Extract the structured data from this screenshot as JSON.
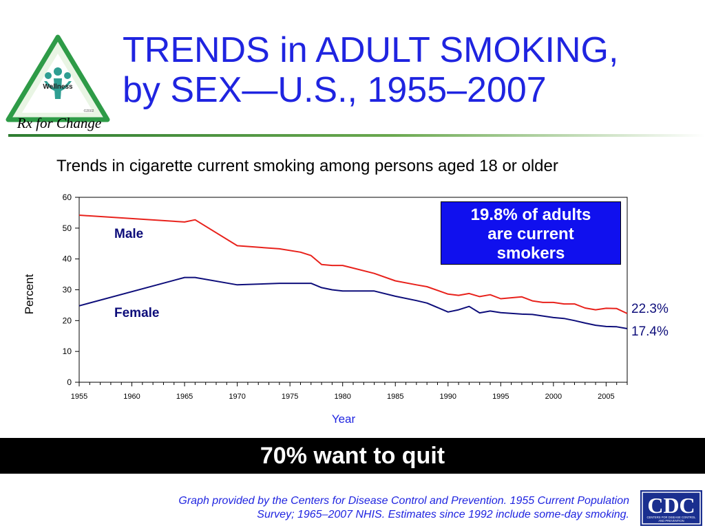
{
  "logo": {
    "wellness": "Wellness",
    "copyright": "©2002",
    "rx_for_change": "Rx for Change"
  },
  "title": {
    "line1": "TRENDS in ADULT SMOKING,",
    "line2": "by SEX—U.S., 1955–2007"
  },
  "chart_data": {
    "type": "line",
    "title": "Trends in cigarette current smoking among persons aged 18 or older",
    "xlabel": "Year",
    "ylabel": "Percent",
    "xlim": [
      1955,
      2007
    ],
    "ylim": [
      0,
      60
    ],
    "x_ticks": [
      1955,
      1960,
      1965,
      1970,
      1975,
      1980,
      1985,
      1990,
      1995,
      2000,
      2005
    ],
    "y_ticks": [
      0,
      10,
      20,
      30,
      40,
      50,
      60
    ],
    "grid": false,
    "legend": "inline labels",
    "series": [
      {
        "name": "Male",
        "color": "#e8211b",
        "x": [
          1955,
          1965,
          1966,
          1970,
          1974,
          1976,
          1977,
          1978,
          1979,
          1980,
          1983,
          1985,
          1987,
          1988,
          1990,
          1991,
          1992,
          1993,
          1994,
          1995,
          1997,
          1998,
          1999,
          2000,
          2001,
          2002,
          2003,
          2004,
          2005,
          2006,
          2007
        ],
        "values": [
          54.2,
          52.0,
          52.7,
          44.3,
          43.3,
          42.2,
          41.1,
          38.2,
          37.9,
          37.9,
          35.3,
          32.9,
          31.6,
          31.0,
          28.6,
          28.2,
          28.8,
          27.8,
          28.4,
          27.1,
          27.7,
          26.4,
          25.9,
          25.9,
          25.4,
          25.4,
          24.1,
          23.5,
          24.0,
          23.9,
          22.3
        ]
      },
      {
        "name": "Female",
        "color": "#0d0d7a",
        "x": [
          1955,
          1965,
          1966,
          1970,
          1974,
          1976,
          1977,
          1978,
          1979,
          1980,
          1983,
          1985,
          1987,
          1988,
          1990,
          1991,
          1992,
          1993,
          1994,
          1995,
          1997,
          1998,
          1999,
          2000,
          2001,
          2002,
          2003,
          2004,
          2005,
          2006,
          2007
        ],
        "values": [
          24.8,
          34.0,
          34.0,
          31.6,
          32.1,
          32.1,
          32.1,
          30.7,
          30.0,
          29.6,
          29.6,
          27.9,
          26.5,
          25.7,
          22.8,
          23.5,
          24.6,
          22.5,
          23.1,
          22.6,
          22.1,
          22.0,
          21.5,
          21.0,
          20.7,
          20.0,
          19.2,
          18.5,
          18.1,
          18.0,
          17.4
        ]
      }
    ],
    "annotations": {
      "male_end": "22.3%",
      "female_end": "17.4%"
    }
  },
  "callout": {
    "line1": "19.8% of adults",
    "line2": "are current",
    "line3": "smokers"
  },
  "banner": "70% want to quit",
  "footnote": {
    "line1": "Graph provided by the Centers for Disease Control and Prevention. 1955 Current Population",
    "line2": "Survey; 1965–2007 NHIS. Estimates since 1992 include some-day smoking."
  },
  "cdc_logo": {
    "text": "CDC",
    "subtext1": "CENTERS FOR DISEASE CONTROL",
    "subtext2": "AND PREVENTION"
  }
}
